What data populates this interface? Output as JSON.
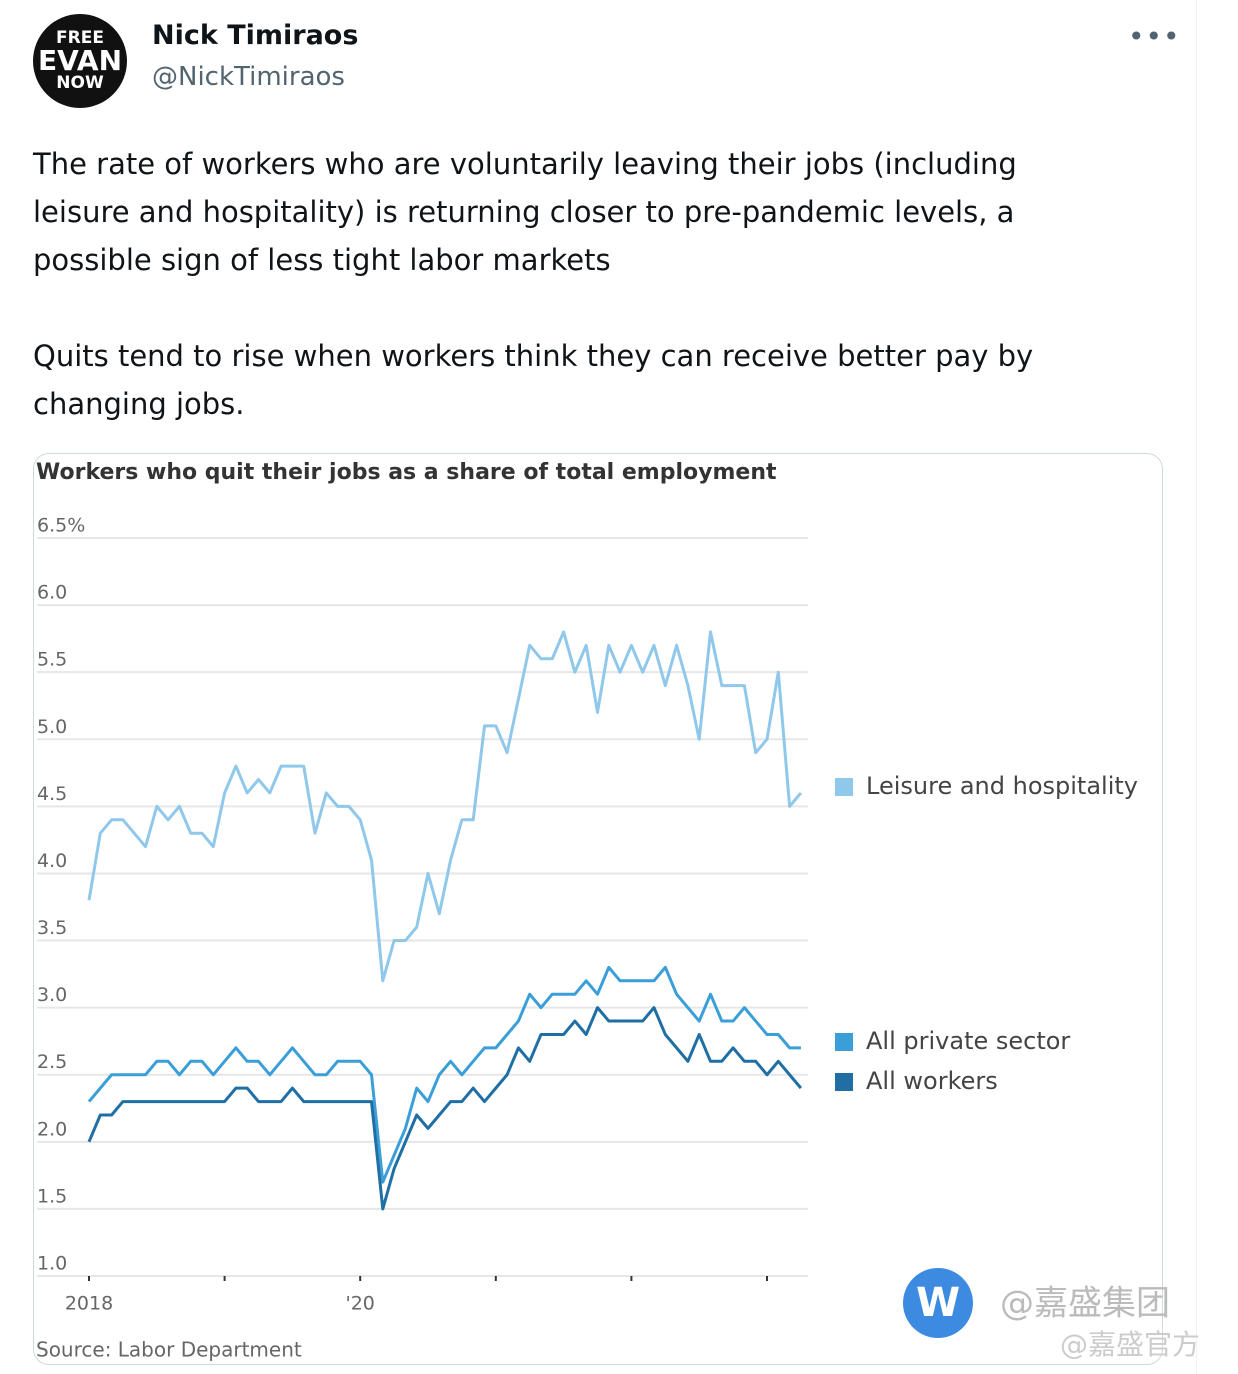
{
  "tweet": {
    "avatar": [
      "FREE",
      "EVAN",
      "NOW"
    ],
    "name": "Nick Timiraos",
    "handle": "@NickTimiraos",
    "text": [
      "The rate of workers who are voluntarily leaving their jobs (including leisure and hospitality) is returning closer to pre-pandemic levels, a possible sign of less tight labor markets",
      "Quits tend to rise when workers think they can receive better pay by changing jobs."
    ]
  },
  "chart_data": {
    "type": "line",
    "title": "Workers who quit their jobs as a share of total employment",
    "source": "Source: Labor Department",
    "categories": [
      "2018",
      null,
      null,
      null,
      null,
      null,
      null,
      null,
      null,
      null,
      null,
      null,
      null,
      null,
      null,
      null,
      null,
      null,
      null,
      null,
      null,
      null,
      null,
      null,
      "'20",
      null,
      null,
      null,
      null,
      null,
      null,
      null,
      null,
      null,
      null,
      null,
      null,
      null,
      null,
      null,
      null,
      null,
      null,
      null,
      null,
      null,
      null,
      null,
      null,
      null,
      null,
      null,
      null,
      null,
      null,
      null,
      null,
      null,
      null,
      null,
      null,
      null,
      null,
      null
    ],
    "ylim": [
      1,
      6.5
    ],
    "yticks": [
      {
        "value": 1,
        "label": "1.0"
      },
      1.5,
      {
        "value": 2,
        "label": "2.0"
      },
      2.5,
      {
        "value": 3,
        "label": "3.0"
      },
      3.5,
      {
        "value": 4,
        "label": "4.0"
      },
      4.5,
      {
        "value": 5,
        "label": "5.0"
      },
      5.5,
      {
        "value": 6,
        "label": "6.0"
      },
      {
        "value": 6.5,
        "label": "6.5%"
      }
    ],
    "grid": true,
    "series": [
      {
        "name": "Leisure and hospitality",
        "color": "#8fc8ea",
        "values": [
          3.8,
          4.3,
          4.4,
          4.4,
          4.3,
          4.2,
          4.5,
          4.4,
          4.5,
          4.3,
          4.3,
          4.2,
          4.6,
          4.8,
          4.6,
          4.7,
          4.6,
          4.8,
          4.8,
          4.8,
          4.3,
          4.6,
          4.5,
          4.5,
          4.4,
          4.1,
          3.2,
          3.5,
          3.5,
          3.6,
          4.0,
          3.7,
          4.1,
          4.4,
          4.4,
          5.1,
          5.1,
          4.9,
          5.3,
          5.7,
          5.6,
          5.6,
          5.8,
          5.5,
          5.7,
          5.2,
          5.7,
          5.5,
          5.7,
          5.5,
          5.7,
          5.4,
          5.7,
          5.4,
          5.0,
          5.8,
          5.4,
          5.4,
          5.4,
          4.9,
          5.0,
          5.5,
          4.5,
          4.6
        ]
      },
      {
        "name": "All private sector",
        "color": "#3a9fd8",
        "values": [
          2.3,
          2.4,
          2.5,
          2.5,
          2.5,
          2.5,
          2.6,
          2.6,
          2.5,
          2.6,
          2.6,
          2.5,
          2.6,
          2.7,
          2.6,
          2.6,
          2.5,
          2.6,
          2.7,
          2.6,
          2.5,
          2.5,
          2.6,
          2.6,
          2.6,
          2.5,
          1.7,
          1.9,
          2.1,
          2.4,
          2.3,
          2.5,
          2.6,
          2.5,
          2.6,
          2.7,
          2.7,
          2.8,
          2.9,
          3.1,
          3.0,
          3.1,
          3.1,
          3.1,
          3.2,
          3.1,
          3.3,
          3.2,
          3.2,
          3.2,
          3.2,
          3.3,
          3.1,
          3.0,
          2.9,
          3.1,
          2.9,
          2.9,
          3.0,
          2.9,
          2.8,
          2.8,
          2.7,
          2.7
        ]
      },
      {
        "name": "All workers",
        "color": "#1f6fa5",
        "values": [
          2.0,
          2.2,
          2.2,
          2.3,
          2.3,
          2.3,
          2.3,
          2.3,
          2.3,
          2.3,
          2.3,
          2.3,
          2.3,
          2.4,
          2.4,
          2.3,
          2.3,
          2.3,
          2.4,
          2.3,
          2.3,
          2.3,
          2.3,
          2.3,
          2.3,
          2.3,
          1.5,
          1.8,
          2.0,
          2.2,
          2.1,
          2.2,
          2.3,
          2.3,
          2.4,
          2.3,
          2.4,
          2.5,
          2.7,
          2.6,
          2.8,
          2.8,
          2.8,
          2.9,
          2.8,
          3.0,
          2.9,
          2.9,
          2.9,
          2.9,
          3.0,
          2.8,
          2.7,
          2.6,
          2.8,
          2.6,
          2.6,
          2.7,
          2.6,
          2.6,
          2.5,
          2.6,
          2.5,
          2.4
        ]
      }
    ]
  },
  "watermark": [
    "@嘉盛集团",
    "@嘉盛官方"
  ]
}
